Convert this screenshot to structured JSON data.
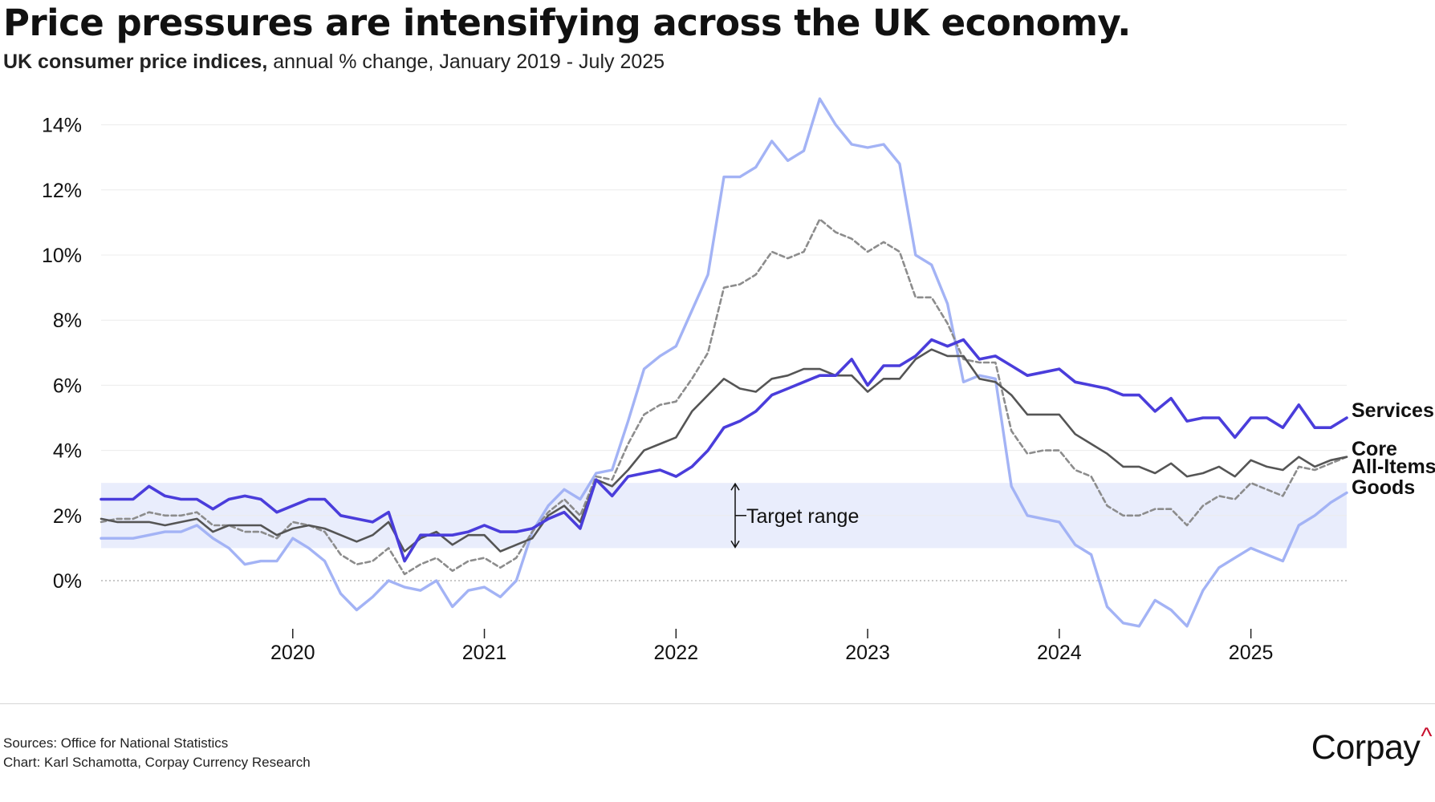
{
  "header": {
    "title": "Price pressures are intensifying across the UK economy.",
    "subtitle_strong": "UK consumer price indices,",
    "subtitle_rest": " annual % change, January 2019 - July 2025"
  },
  "footer": {
    "source_line": "Sources: Office for National Statistics",
    "credit_line": "Chart: Karl Schamotta, Corpay Currency Research",
    "logo_text": "Corpay",
    "logo_mark": "^"
  },
  "chart_data": {
    "type": "line",
    "title": "Price pressures are intensifying across the UK economy.",
    "subtitle": "UK consumer price indices, annual % change, January 2019 - July 2025",
    "x_start": "2019-01",
    "x_end": "2025-07",
    "x_ticks": [
      "2020",
      "2021",
      "2022",
      "2023",
      "2024",
      "2025"
    ],
    "y_ticks": [
      "0%",
      "2%",
      "4%",
      "6%",
      "8%",
      "10%",
      "12%",
      "14%"
    ],
    "ylim": [
      -1.5,
      15
    ],
    "gridlines": true,
    "target_range": {
      "label": "Target range",
      "low": 1,
      "high": 3,
      "color": "#e9edfc"
    },
    "series": [
      {
        "name": "Services",
        "color": "#4a3ddb",
        "style": "solid",
        "values": [
          2.5,
          2.5,
          2.5,
          2.9,
          2.6,
          2.5,
          2.5,
          2.2,
          2.5,
          2.6,
          2.5,
          2.1,
          2.3,
          2.5,
          2.5,
          2.0,
          1.9,
          1.8,
          2.1,
          0.6,
          1.4,
          1.4,
          1.4,
          1.5,
          1.7,
          1.5,
          1.5,
          1.6,
          1.9,
          2.1,
          1.6,
          3.1,
          2.6,
          3.2,
          3.3,
          3.4,
          3.2,
          3.5,
          4.0,
          4.7,
          4.9,
          5.2,
          5.7,
          5.9,
          6.1,
          6.3,
          6.3,
          6.8,
          6.0,
          6.6,
          6.6,
          6.9,
          7.4,
          7.2,
          7.4,
          6.8,
          6.9,
          6.6,
          6.3,
          6.4,
          6.5,
          6.1,
          6.0,
          5.9,
          5.7,
          5.7,
          5.2,
          5.6,
          4.9,
          5.0,
          5.0,
          4.4,
          5.0,
          5.0,
          4.7,
          5.4,
          4.7,
          4.7,
          5.0
        ]
      },
      {
        "name": "Core",
        "color": "#555555",
        "style": "solid",
        "values": [
          1.9,
          1.8,
          1.8,
          1.8,
          1.7,
          1.8,
          1.9,
          1.5,
          1.7,
          1.7,
          1.7,
          1.4,
          1.6,
          1.7,
          1.6,
          1.4,
          1.2,
          1.4,
          1.8,
          0.9,
          1.3,
          1.5,
          1.1,
          1.4,
          1.4,
          0.9,
          1.1,
          1.3,
          2.0,
          2.3,
          1.8,
          3.1,
          2.9,
          3.4,
          4.0,
          4.2,
          4.4,
          5.2,
          5.7,
          6.2,
          5.9,
          5.8,
          6.2,
          6.3,
          6.5,
          6.5,
          6.3,
          6.3,
          5.8,
          6.2,
          6.2,
          6.8,
          7.1,
          6.9,
          6.9,
          6.2,
          6.1,
          5.7,
          5.1,
          5.1,
          5.1,
          4.5,
          4.2,
          3.9,
          3.5,
          3.5,
          3.3,
          3.6,
          3.2,
          3.3,
          3.5,
          3.2,
          3.7,
          3.5,
          3.4,
          3.8,
          3.5,
          3.7,
          3.8
        ]
      },
      {
        "name": "All-Items",
        "color": "#8c8c8c",
        "style": "dashed",
        "values": [
          1.8,
          1.9,
          1.9,
          2.1,
          2.0,
          2.0,
          2.1,
          1.7,
          1.7,
          1.5,
          1.5,
          1.3,
          1.8,
          1.7,
          1.5,
          0.8,
          0.5,
          0.6,
          1.0,
          0.2,
          0.5,
          0.7,
          0.3,
          0.6,
          0.7,
          0.4,
          0.7,
          1.5,
          2.1,
          2.5,
          2.0,
          3.2,
          3.1,
          4.2,
          5.1,
          5.4,
          5.5,
          6.2,
          7.0,
          9.0,
          9.1,
          9.4,
          10.1,
          9.9,
          10.1,
          11.1,
          10.7,
          10.5,
          10.1,
          10.4,
          10.1,
          8.7,
          8.7,
          7.9,
          6.8,
          6.7,
          6.7,
          4.6,
          3.9,
          4.0,
          4.0,
          3.4,
          3.2,
          2.3,
          2.0,
          2.0,
          2.2,
          2.2,
          1.7,
          2.3,
          2.6,
          2.5,
          3.0,
          2.8,
          2.6,
          3.5,
          3.4,
          3.6,
          3.8
        ]
      },
      {
        "name": "Goods",
        "color": "#a3b3f5",
        "style": "solid",
        "values": [
          1.3,
          1.3,
          1.3,
          1.4,
          1.5,
          1.5,
          1.7,
          1.3,
          1.0,
          0.5,
          0.6,
          0.6,
          1.3,
          1.0,
          0.6,
          -0.4,
          -0.9,
          -0.5,
          0.0,
          -0.2,
          -0.3,
          0.0,
          -0.8,
          -0.3,
          -0.2,
          -0.5,
          0.0,
          1.5,
          2.3,
          2.8,
          2.5,
          3.3,
          3.4,
          4.9,
          6.5,
          6.9,
          7.2,
          8.3,
          9.4,
          12.4,
          12.4,
          12.7,
          13.5,
          12.9,
          13.2,
          14.8,
          14.0,
          13.4,
          13.3,
          13.4,
          12.8,
          10.0,
          9.7,
          8.5,
          6.1,
          6.3,
          6.2,
          2.9,
          2.0,
          1.9,
          1.8,
          1.1,
          0.8,
          -0.8,
          -1.3,
          -1.4,
          -0.6,
          -0.9,
          -1.4,
          -0.3,
          0.4,
          0.7,
          1.0,
          0.8,
          0.6,
          1.7,
          2.0,
          2.4,
          2.7
        ]
      }
    ]
  }
}
